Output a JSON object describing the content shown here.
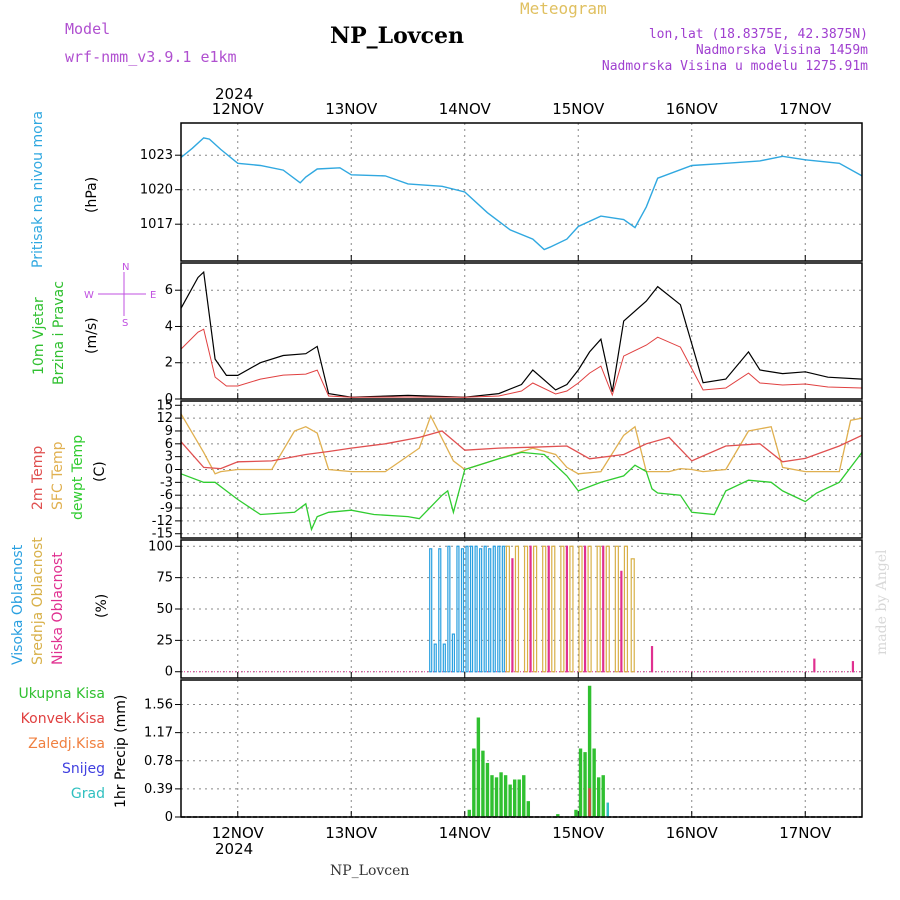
{
  "header": {
    "model_label": "Model",
    "model_name": "wrf-nmm_v3.9.1 e1km",
    "station": "NP_Lovcen",
    "meteogram": "Meteogram",
    "lonlat": "lon,lat (18.8375E, 42.3875N)",
    "altitude": "Nadmorska Visina 1459m",
    "model_altitude": "Nadmorska Visina u modelu 1275.91m"
  },
  "footer": {
    "station": "NP_Lovcen",
    "watermark": "made by Angel"
  },
  "axis": {
    "year": "2024",
    "days": [
      "12NOV",
      "13NOV",
      "14NOV",
      "15NOV",
      "16NOV",
      "17NOV"
    ],
    "x_range_days": [
      11.5,
      17.5
    ]
  },
  "colors": {
    "pressure": "#30a8e0",
    "temp2m": "#e05050",
    "sfc": "#e0b050",
    "dew": "#30cc30",
    "high_cloud": "#2aa0e0",
    "mid_cloud": "#d8b048",
    "low_cloud": "#e03090",
    "rain": "#30c030",
    "conv": "#e04040",
    "frz": "#f08040",
    "snow": "#4040e0",
    "grad": "#30c0c0",
    "wind_labels": "#30c030",
    "wind_icons": "#c050e0"
  },
  "chart_data": [
    {
      "type": "line",
      "panel": "pressure",
      "ylabel_line1": "Pritisak na nivou mora",
      "ylabel_line2": "(hPa)",
      "ylim": [
        1013.8,
        1025.8
      ],
      "yticks": [
        1017,
        1020,
        1023
      ],
      "grid": true,
      "series": [
        {
          "x": [
            11.5,
            11.6,
            11.7,
            11.75,
            11.85,
            12.0,
            12.2,
            12.4,
            12.55,
            12.6,
            12.7,
            12.9,
            13.0,
            13.3,
            13.5,
            13.8,
            14.0,
            14.2,
            14.4,
            14.6,
            14.7,
            14.75,
            14.9,
            15.0,
            15.2,
            15.4,
            15.5,
            15.6,
            15.7,
            16.0,
            16.3,
            16.6,
            16.8,
            17.0,
            17.3,
            17.5
          ],
          "y": [
            1022.8,
            1023.6,
            1024.5,
            1024.4,
            1023.5,
            1022.3,
            1022.1,
            1021.7,
            1020.6,
            1021.1,
            1021.8,
            1021.9,
            1021.3,
            1021.2,
            1020.5,
            1020.3,
            1019.8,
            1018.0,
            1016.5,
            1015.7,
            1014.8,
            1015.0,
            1015.7,
            1016.8,
            1017.7,
            1017.4,
            1016.7,
            1018.5,
            1021.0,
            1022.1,
            1022.3,
            1022.5,
            1022.9,
            1022.6,
            1022.3,
            1021.2
          ]
        }
      ]
    },
    {
      "type": "line",
      "panel": "wind",
      "ylabel_line1": "10m Vjetar",
      "ylabel_line2": "Brzina i Pravac",
      "ylabel_line3": "(m/s)",
      "compass": {
        "n": "N",
        "s": "S",
        "e": "E",
        "w": "W"
      },
      "ylim": [
        0,
        7.5
      ],
      "yticks": [
        0,
        2,
        4,
        6
      ],
      "grid": true,
      "series": [
        {
          "x": [
            11.5,
            11.65,
            11.7,
            11.8,
            11.9,
            12.0,
            12.2,
            12.4,
            12.6,
            12.7,
            12.8,
            13.0,
            13.5,
            14.0,
            14.3,
            14.5,
            14.6,
            14.8,
            14.9,
            15.0,
            15.1,
            15.2,
            15.3,
            15.4,
            15.6,
            15.7,
            15.9,
            16.1,
            16.3,
            16.5,
            16.6,
            16.8,
            17.0,
            17.2,
            17.5
          ],
          "y": [
            5.0,
            6.7,
            7.0,
            2.2,
            1.3,
            1.3,
            2.0,
            2.4,
            2.5,
            2.9,
            0.3,
            0.1,
            0.2,
            0.1,
            0.3,
            0.8,
            1.6,
            0.5,
            0.8,
            1.6,
            2.6,
            3.3,
            0.4,
            4.3,
            5.4,
            6.2,
            5.2,
            0.9,
            1.1,
            2.6,
            1.6,
            1.4,
            1.5,
            1.2,
            1.1
          ]
        }
      ]
    },
    {
      "type": "line",
      "panel": "temperature",
      "ylabel_line1": "2m Temp",
      "ylabel_line2": "SFC Temp",
      "ylabel_line3": "dewpt Temp",
      "ylabel_line4": "(C)",
      "ylim": [
        -16,
        16
      ],
      "yticks": [
        -15,
        -12,
        -9,
        -6,
        -3,
        0,
        3,
        6,
        9,
        12,
        15
      ],
      "grid": true,
      "series": [
        {
          "name_key": "2m Temp",
          "x": [
            11.5,
            11.7,
            11.85,
            12.0,
            12.3,
            12.6,
            12.8,
            13.0,
            13.3,
            13.6,
            13.8,
            14.0,
            14.3,
            14.6,
            14.9,
            15.1,
            15.4,
            15.6,
            15.8,
            16.0,
            16.3,
            16.6,
            16.8,
            17.0,
            17.3,
            17.5
          ],
          "y": [
            6.5,
            0.5,
            0.2,
            1.8,
            2.0,
            3.5,
            4.2,
            5.0,
            6.0,
            7.5,
            9.0,
            4.5,
            5.0,
            5.2,
            5.5,
            2.5,
            3.5,
            6.0,
            7.5,
            2.0,
            5.5,
            6.0,
            1.8,
            2.6,
            5.5,
            8.0
          ]
        },
        {
          "name_key": "SFC Temp",
          "x": [
            11.5,
            11.7,
            11.8,
            11.85,
            12.0,
            12.3,
            12.5,
            12.6,
            12.7,
            12.8,
            13.0,
            13.3,
            13.6,
            13.7,
            13.9,
            14.0,
            14.3,
            14.6,
            14.8,
            14.9,
            15.0,
            15.2,
            15.4,
            15.5,
            15.6,
            15.8,
            15.9,
            16.0,
            16.1,
            16.3,
            16.5,
            16.7,
            16.8,
            17.0,
            17.3,
            17.4,
            17.5
          ],
          "y": [
            13.0,
            4.0,
            -1.0,
            -0.5,
            0.0,
            0.0,
            9.0,
            10.0,
            8.5,
            0.0,
            -0.5,
            -0.5,
            5.0,
            12.5,
            2.0,
            0.0,
            2.5,
            5.0,
            3.5,
            0.5,
            -1.0,
            -0.5,
            8.0,
            10.0,
            -0.5,
            -0.5,
            0.2,
            0.0,
            -0.5,
            0.0,
            9.0,
            10.0,
            0.5,
            -0.5,
            -0.5,
            11.5,
            12.0
          ]
        },
        {
          "name_key": "dewpt Temp",
          "x": [
            11.5,
            11.7,
            11.8,
            11.9,
            12.0,
            12.2,
            12.5,
            12.6,
            12.65,
            12.7,
            12.8,
            13.0,
            13.2,
            13.5,
            13.6,
            13.8,
            13.85,
            13.9,
            14.0,
            14.3,
            14.5,
            14.7,
            14.9,
            15.0,
            15.2,
            15.4,
            15.5,
            15.6,
            15.65,
            15.7,
            15.9,
            16.0,
            16.2,
            16.3,
            16.5,
            16.7,
            16.8,
            17.0,
            17.1,
            17.3,
            17.5
          ],
          "y": [
            -1.0,
            -3.0,
            -3.0,
            -5.0,
            -7.0,
            -10.5,
            -10.0,
            -8.0,
            -14.0,
            -11.0,
            -10.0,
            -9.5,
            -10.5,
            -11.0,
            -11.5,
            -6.0,
            -5.0,
            -10.0,
            0.0,
            2.5,
            4.0,
            3.5,
            -1.5,
            -5.0,
            -3.0,
            -1.5,
            1.0,
            -0.5,
            -4.5,
            -5.5,
            -6.0,
            -10.0,
            -10.5,
            -5.0,
            -2.5,
            -3.0,
            -5.0,
            -7.5,
            -5.5,
            -3.0,
            4.0
          ]
        }
      ]
    },
    {
      "type": "bar",
      "panel": "clouds",
      "ylabel_line1": "Visoka Oblacnost",
      "ylabel_line2": "Srednja Oblacnost",
      "ylabel_line3": "Niska Oblacnost",
      "ylabel_line4": "(%)",
      "ylim": [
        -5,
        105
      ],
      "yticks": [
        0,
        25,
        50,
        75,
        100
      ],
      "grid": true,
      "high": {
        "x": [
          13.7,
          13.74,
          13.78,
          13.82,
          13.86,
          13.9,
          13.94,
          13.98,
          14.02,
          14.06,
          14.1,
          14.14,
          14.18,
          14.22,
          14.26,
          14.3,
          14.34
        ],
        "y": [
          98,
          22,
          98,
          22,
          100,
          30,
          100,
          98,
          100,
          100,
          100,
          98,
          100,
          98,
          100,
          100,
          100
        ]
      },
      "mid": {
        "x": [
          14.38,
          14.46,
          14.54,
          14.62,
          14.7,
          14.78,
          14.86,
          14.94,
          15.02,
          15.1,
          15.18,
          15.26,
          15.34,
          15.42,
          15.48
        ],
        "y": [
          100,
          100,
          100,
          100,
          100,
          100,
          100,
          100,
          100,
          100,
          100,
          100,
          100,
          100,
          90
        ]
      },
      "low": {
        "x": [
          14.42,
          14.58,
          14.74,
          14.9,
          15.06,
          15.22,
          15.38,
          15.65,
          17.08,
          17.42
        ],
        "y": [
          90,
          100,
          100,
          100,
          100,
          100,
          80,
          20,
          10,
          8
        ]
      }
    },
    {
      "type": "bar",
      "panel": "precip",
      "ylabel": "1hr Precip (mm)",
      "legend": [
        "Ukupna Kisa",
        "Konvek.Kisa",
        "Zaledj.Kisa",
        "Snijeg",
        "Grad"
      ],
      "ylim": [
        0,
        1.9
      ],
      "yticks": [
        0,
        0.39,
        0.78,
        1.17,
        1.56
      ],
      "grid": true,
      "rain": {
        "x": [
          14.04,
          14.08,
          14.12,
          14.16,
          14.2,
          14.24,
          14.28,
          14.32,
          14.36,
          14.4,
          14.44,
          14.48,
          14.52,
          14.56,
          14.82,
          14.98,
          15.02,
          15.06,
          15.1,
          15.14,
          15.18,
          15.22
        ],
        "y": [
          0.1,
          0.95,
          1.38,
          0.92,
          0.75,
          0.58,
          0.55,
          0.62,
          0.58,
          0.45,
          0.52,
          0.52,
          0.58,
          0.22,
          0.04,
          0.1,
          0.95,
          0.9,
          1.82,
          0.95,
          0.55,
          0.58
        ]
      },
      "conv": {
        "x": [
          15.1
        ],
        "y": [
          0.4
        ]
      },
      "grad": {
        "x": [
          15.26
        ],
        "y": [
          0.2
        ]
      }
    }
  ]
}
